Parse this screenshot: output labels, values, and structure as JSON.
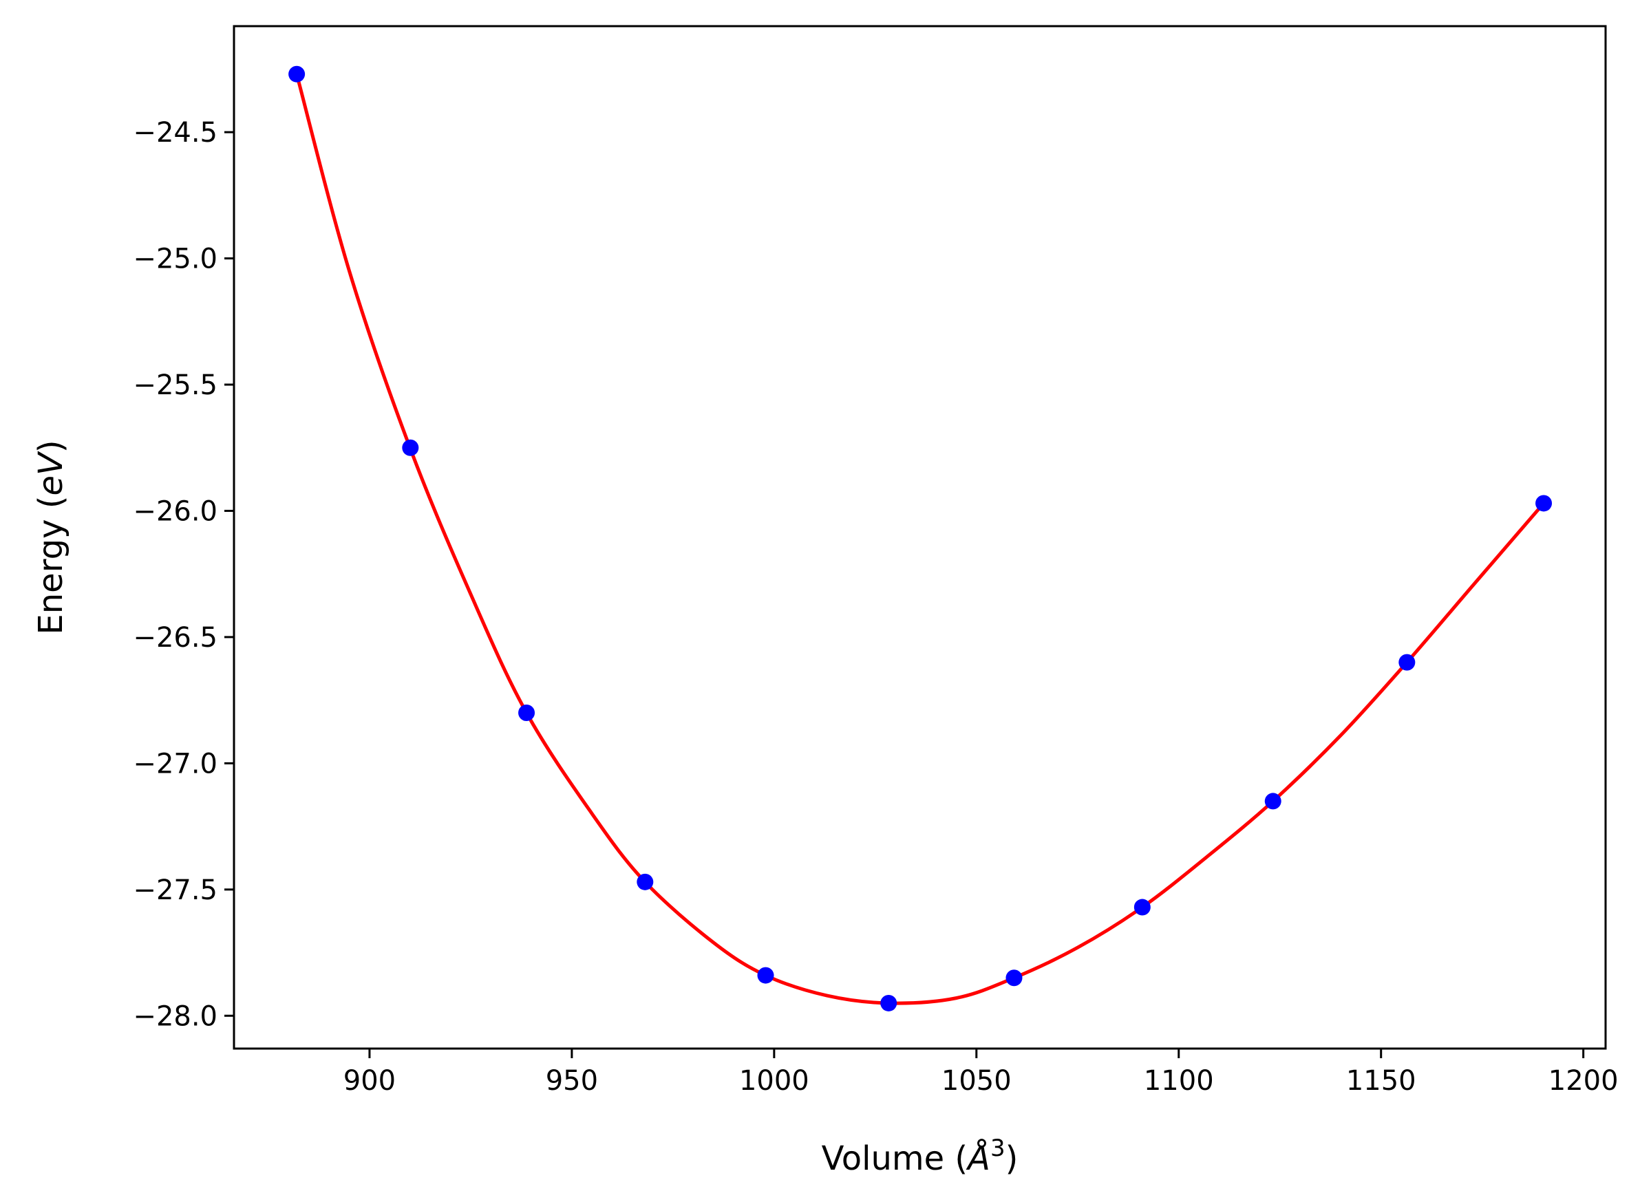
{
  "chart_data": {
    "type": "line",
    "xlabel_prefix": "Volume (",
    "xlabel_unit": "Å",
    "xlabel_exp": "3",
    "xlabel_suffix": ")",
    "ylabel_prefix": "Energy (",
    "ylabel_unit": "eV",
    "ylabel_suffix": ")",
    "xlim": [
      866.5,
      1205.5
    ],
    "ylim": [
      -28.13,
      -24.08
    ],
    "x_ticks": [
      900,
      950,
      1000,
      1050,
      1100,
      1150,
      1200
    ],
    "x_tick_labels": [
      "900",
      "950",
      "1000",
      "1050",
      "1100",
      "1150",
      "1200"
    ],
    "y_ticks": [
      -24.5,
      -25.0,
      -25.5,
      -26.0,
      -26.5,
      -27.0,
      -27.5,
      -28.0
    ],
    "y_tick_labels": [
      "−24.5",
      "−25.0",
      "−25.5",
      "−26.0",
      "−26.5",
      "−27.0",
      "−27.5",
      "−28.0"
    ],
    "grid": false,
    "series": [
      {
        "kind": "scatter",
        "color": "#0000ff",
        "x": [
          882.0,
          910.1,
          938.8,
          968.1,
          997.9,
          1028.3,
          1059.3,
          1091.0,
          1123.3,
          1156.4,
          1190.2
        ],
        "y": [
          -24.27,
          -25.75,
          -26.8,
          -27.47,
          -27.84,
          -27.95,
          -27.85,
          -27.57,
          -27.15,
          -26.6,
          -25.97
        ]
      },
      {
        "kind": "fit-curve",
        "color": "#ff0000",
        "x": [
          882,
          895,
          910,
          925,
          938.8,
          955,
          968.1,
          985,
          997.9,
          1013,
          1028.3,
          1045,
          1059.3,
          1075,
          1091.0,
          1107,
          1123.3,
          1140,
          1156.4,
          1173,
          1190.2
        ],
        "y": [
          -24.27,
          -25.05,
          -25.75,
          -26.33,
          -26.8,
          -27.2,
          -27.47,
          -27.71,
          -27.84,
          -27.92,
          -27.95,
          -27.93,
          -27.85,
          -27.73,
          -27.57,
          -27.37,
          -27.15,
          -26.89,
          -26.6,
          -26.29,
          -25.97
        ]
      }
    ]
  }
}
